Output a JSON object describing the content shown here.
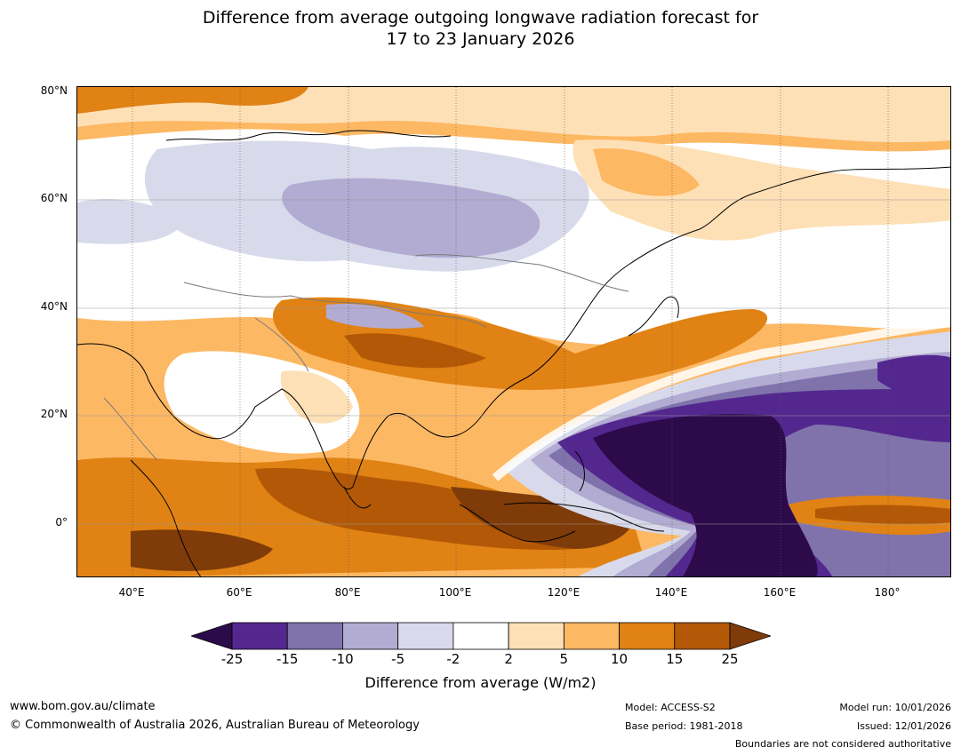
{
  "title": {
    "line1": "Difference from average outgoing longwave radiation forecast for",
    "line2": "17 to 23 January 2026"
  },
  "map": {
    "lat_labels": [
      "80°N",
      "60°N",
      "40°N",
      "20°N",
      "0°"
    ],
    "lon_labels": [
      "40°E",
      "60°E",
      "80°E",
      "100°E",
      "120°E",
      "140°E",
      "160°E",
      "180°"
    ],
    "region": "Asia, Indian Ocean and western Pacific"
  },
  "colorbar": {
    "ticks": [
      "-25",
      "-15",
      "-10",
      "-5",
      "-2",
      "2",
      "5",
      "10",
      "15",
      "25"
    ],
    "colors": [
      "#2d0b4b",
      "#54278f",
      "#8073ac",
      "#b2abd2",
      "#d8daeb",
      "#ffffff",
      "#fee0b6",
      "#fdb863",
      "#e08214",
      "#b35806",
      "#7f3b08"
    ],
    "label": "Difference from average (W/m2)"
  },
  "footer": {
    "website": "www.bom.gov.au/climate",
    "copyright": "© Commonwealth of Australia 2026, Australian Bureau of Meteorology",
    "model": "Model: ACCESS-S2",
    "base_period": "Base period: 1981-2018",
    "model_run": "Model run: 10/01/2026",
    "issued": "Issued: 12/01/2026",
    "disclaimer": "Boundaries are not considered authoritative"
  }
}
